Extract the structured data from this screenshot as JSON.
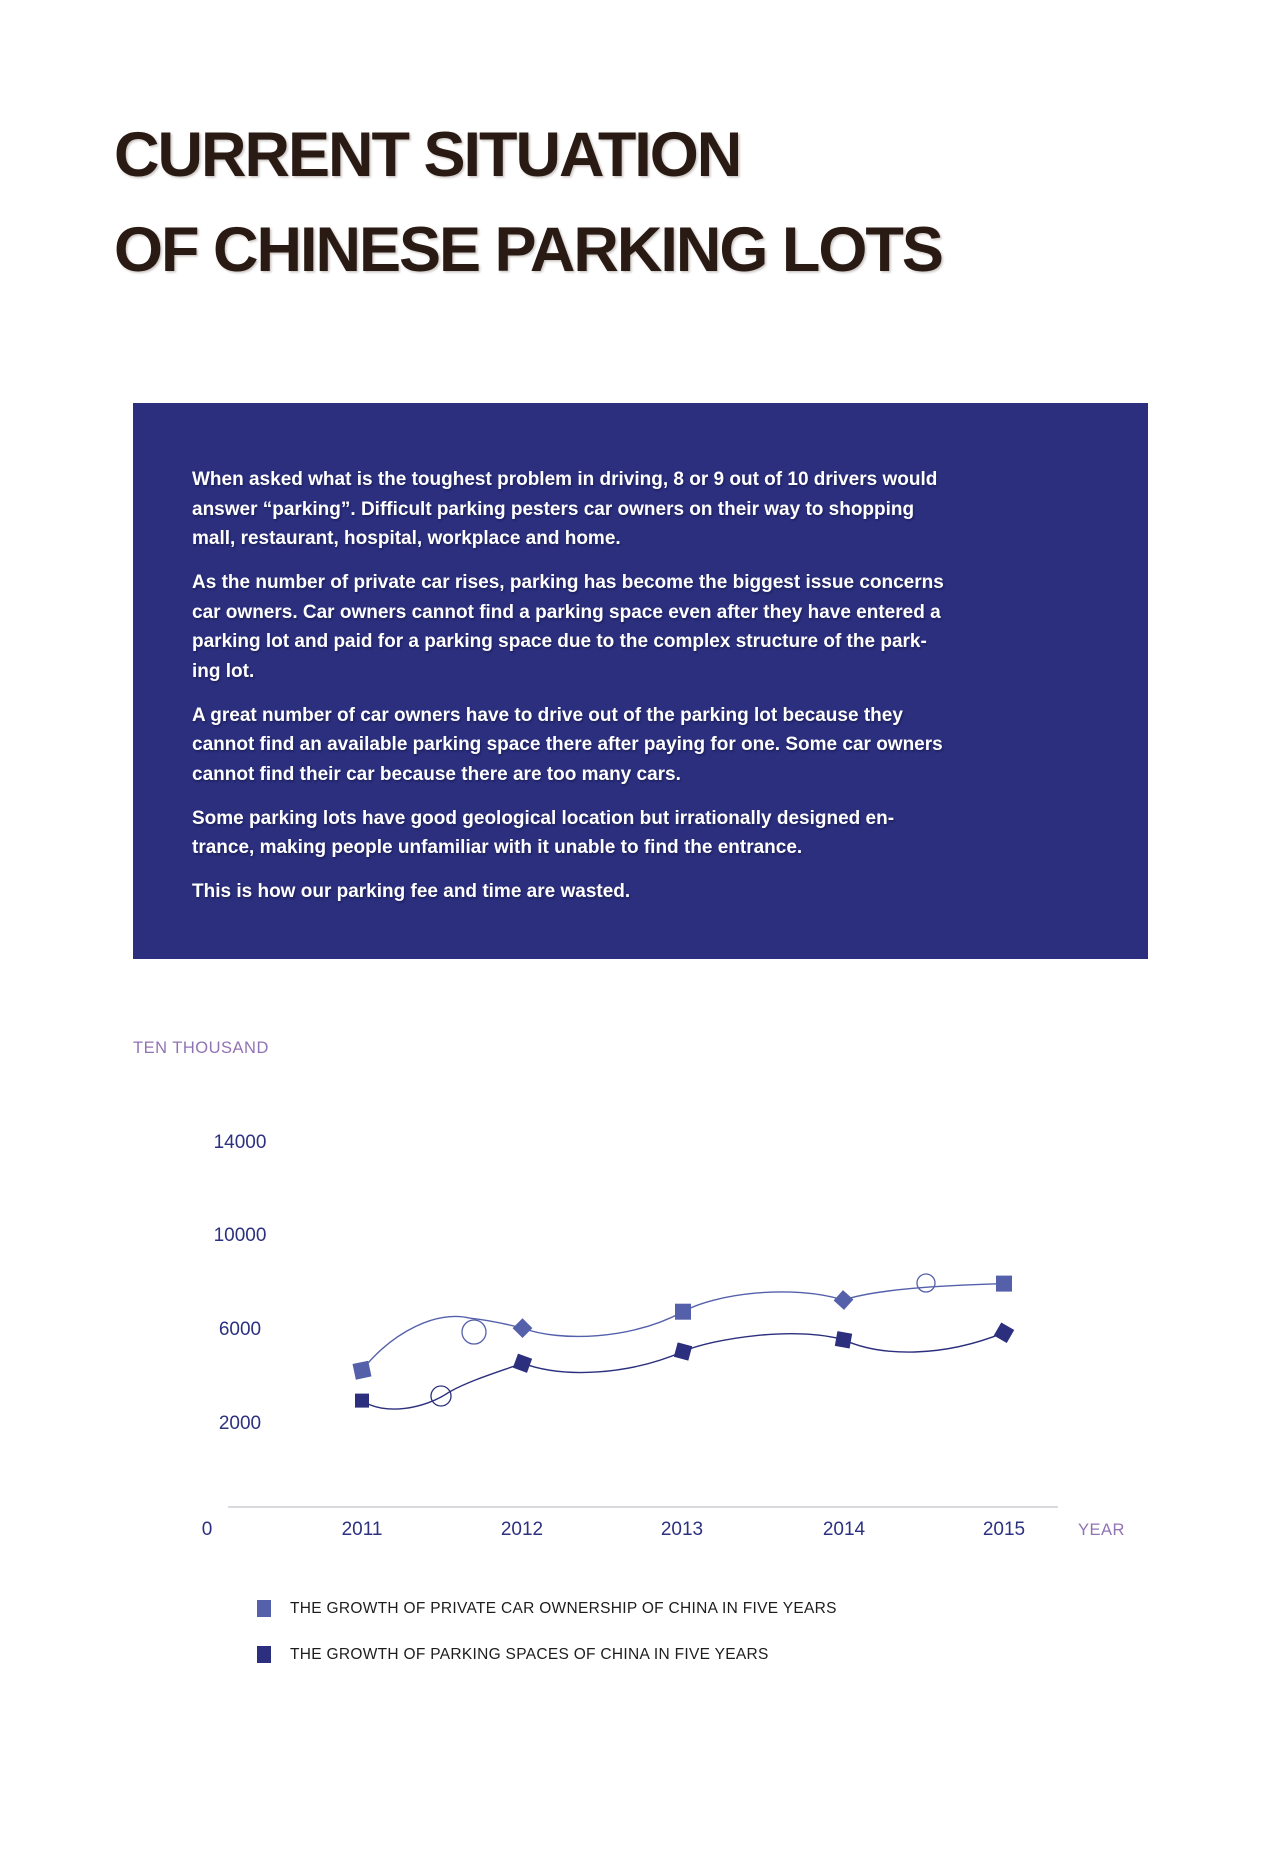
{
  "title": {
    "line1": "CURRENT SITUATION",
    "line2": "OF CHINESE PARKING LOTS",
    "color": "#291b14"
  },
  "intro": {
    "bg_color": "#2b2f7e",
    "text_color": "#ffffff",
    "paragraphs": [
      "When asked what is the toughest problem in driving, 8 or 9 out of 10 drivers would\nanswer “parking”. Difficult parking pesters car owners on their way to shopping\nmall, restaurant, hospital, workplace and home.",
      "As the number of private car rises, parking has become the biggest issue concerns\ncar owners. Car owners  cannot find a parking space even after they have entered a\nparking lot and paid for a parking space due to the complex structure of the park-\ning lot.",
      "A great number of car owners have to drive out of the parking lot because they\ncannot find an available parking space there after paying for one. Some car owners\ncannot find their car because there are too many cars.",
      "Some parking lots have good geological location but irrationally designed en-\ntrance, making people unfamiliar with it unable to find the entrance.",
      "This is how our parking fee and time are wasted."
    ]
  },
  "chart": {
    "unit_label": "TEN THOUSAND",
    "x_axis_title": "YEAR",
    "origin_label": "0",
    "y_ticks": [
      "14000",
      "10000",
      "6000",
      "2000"
    ],
    "x_ticks": [
      "2011",
      "2012",
      "2013",
      "2014",
      "2015"
    ],
    "axis_label_color": "#9173b4",
    "tick_color": "#2c3180",
    "axis_line_color": "#d9d9de"
  },
  "legend": {
    "text_color": "#1d1d1d",
    "items": [
      {
        "label": "THE GROWTH OF PRIVATE CAR OWNERSHIP OF CHINA IN FIVE YEARS",
        "color": "#5560ab"
      },
      {
        "label": "THE GROWTH OF PARKING SPACES OF CHINA IN FIVE YEARS",
        "color": "#2b2f7d"
      }
    ]
  },
  "chart_data": {
    "type": "line",
    "title": "",
    "x": [
      2011,
      2012,
      2013,
      2014,
      2015
    ],
    "series": [
      {
        "name": "THE GROWTH OF PRIVATE CAR OWNERSHIP OF CHINA IN FIVE YEARS",
        "color": "#5560ab",
        "marker": "square-diamond",
        "values": [
          4300,
          6100,
          6800,
          7300,
          8000
        ]
      },
      {
        "name": "THE GROWTH OF PARKING SPACES OF CHINA IN FIVE YEARS",
        "color": "#2b2f7d",
        "marker": "square",
        "values": [
          3000,
          4600,
          5100,
          5600,
          5900
        ]
      }
    ],
    "ylabel": "TEN THOUSAND",
    "xlabel": "YEAR",
    "ylim": [
      0,
      16000
    ],
    "y_tick_values": [
      2000,
      6000,
      10000,
      14000
    ],
    "grid": false,
    "legend_position": "bottom-left",
    "style": "hand-drawn curved lines with loop flourishes and square/diamond markers"
  }
}
